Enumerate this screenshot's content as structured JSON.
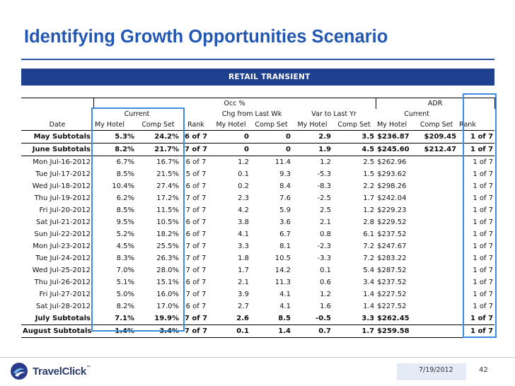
{
  "slide": {
    "title": "Identifying Growth Opportunities Scenario",
    "banner": "RETAIL TRANSIENT",
    "date": "7/19/2012",
    "page_number": "42",
    "logo_text": "TravelClick",
    "logo_tm": "™"
  },
  "table": {
    "group_headers": {
      "occ": "Occ %",
      "adr": "ADR"
    },
    "sub_headers": {
      "current": "Current",
      "chg_from_last_wk": "Chg from Last Wk",
      "var_to_last_yr": "Var to Last Yr",
      "adr_current": "Current"
    },
    "columns": [
      "Date",
      "My Hotel",
      "Comp Set",
      "Rank",
      "My Hotel",
      "Comp Set",
      "My Hotel",
      "Comp Set",
      "My Hotel",
      "Comp Set",
      "Rank"
    ],
    "rows": [
      {
        "type": "subtotal",
        "cells": [
          "May Subtotals",
          "5.3%",
          "24.2%",
          "6 of 7",
          "0",
          "0",
          "2.9",
          "3.5",
          "$236.87",
          "$209.45",
          "1 of 7"
        ]
      },
      {
        "type": "subtotal",
        "cells": [
          "June Subtotals",
          "8.2%",
          "21.7%",
          "7 of 7",
          "0",
          "0",
          "1.9",
          "4.5",
          "$245.60",
          "$212.47",
          "1 of 7"
        ]
      },
      {
        "type": "day",
        "cells": [
          "Mon Jul-16-2012",
          "6.7%",
          "16.7%",
          "6 of 7",
          "1.2",
          "11.4",
          "1.2",
          "2.5",
          "$262.96",
          "",
          "1 of 7"
        ]
      },
      {
        "type": "day",
        "cells": [
          "Tue Jul-17-2012",
          "8.5%",
          "21.5%",
          "5 of 7",
          "0.1",
          "9.3",
          "-5.3",
          "1.5",
          "$293.62",
          "",
          "1 of 7"
        ]
      },
      {
        "type": "day",
        "cells": [
          "Wed Jul-18-2012",
          "10.4%",
          "27.4%",
          "6 of 7",
          "0.2",
          "8.4",
          "-8.3",
          "2.2",
          "$298.26",
          "",
          "1 of 7"
        ]
      },
      {
        "type": "day",
        "cells": [
          "Thu Jul-19-2012",
          "6.2%",
          "17.2%",
          "7 of 7",
          "2.3",
          "7.6",
          "-2.5",
          "1.7",
          "$242.04",
          "",
          "1 of 7"
        ]
      },
      {
        "type": "day",
        "cells": [
          "Fri Jul-20-2012",
          "8.5%",
          "11.5%",
          "7 of 7",
          "4.2",
          "5.9",
          "2.5",
          "1.2",
          "$229.23",
          "",
          "1 of 7"
        ]
      },
      {
        "type": "day",
        "cells": [
          "Sat Jul-21-2012",
          "9.5%",
          "10.5%",
          "6 of 7",
          "3.8",
          "3.6",
          "2.1",
          "2.8",
          "$229.52",
          "",
          "1 of 7"
        ]
      },
      {
        "type": "day",
        "cells": [
          "Sun Jul-22-2012",
          "5.2%",
          "18.2%",
          "6 of 7",
          "4.1",
          "6.7",
          "0.8",
          "6.1",
          "$237.52",
          "",
          "1 of 7"
        ]
      },
      {
        "type": "day",
        "cells": [
          "Mon Jul-23-2012",
          "4.5%",
          "25.5%",
          "7 of 7",
          "3.3",
          "8.1",
          "-2.3",
          "7.2",
          "$247.67",
          "",
          "1 of 7"
        ]
      },
      {
        "type": "day",
        "cells": [
          "Tue Jul-24-2012",
          "8.3%",
          "26.3%",
          "7 of 7",
          "1.8",
          "10.5",
          "-3.3",
          "7.2",
          "$283.22",
          "",
          "1 of 7"
        ]
      },
      {
        "type": "day",
        "cells": [
          "Wed Jul-25-2012",
          "7.0%",
          "28.0%",
          "7 of 7",
          "1.7",
          "14.2",
          "0.1",
          "5.4",
          "$287.52",
          "",
          "1 of 7"
        ]
      },
      {
        "type": "day",
        "cells": [
          "Thu Jul-26-2012",
          "5.1%",
          "15.1%",
          "6 of 7",
          "2.1",
          "11.3",
          "0.6",
          "3.4",
          "$237.52",
          "",
          "1 of 7"
        ]
      },
      {
        "type": "day",
        "cells": [
          "Fri Jul-27-2012",
          "5.0%",
          "16.0%",
          "7 of 7",
          "3.9",
          "4.1",
          "1.2",
          "1.4",
          "$227.52",
          "",
          "1 of 7"
        ]
      },
      {
        "type": "day",
        "cells": [
          "Sat Jul-28-2012",
          "8.2%",
          "17.0%",
          "6 of 7",
          "2.7",
          "4.1",
          "1.6",
          "1.4",
          "$227.52",
          "",
          "1 of 7"
        ]
      },
      {
        "type": "subtotal",
        "cells": [
          "July Subtotals",
          "7.1%",
          "19.9%",
          "7 of 7",
          "2.6",
          "8.5",
          "-0.5",
          "3.3",
          "$262.45",
          "",
          "1 of 7"
        ]
      },
      {
        "type": "subtotal",
        "cells": [
          "August Subtotals",
          "1.4%",
          "3.4%",
          "7 of 7",
          "0.1",
          "1.4",
          "0.7",
          "1.7",
          "$259.58",
          "",
          "1 of 7"
        ]
      }
    ]
  },
  "colors": {
    "title": "#2257b4",
    "banner_bg": "#1f3f8f",
    "highlight_border": "#3d8be0"
  }
}
